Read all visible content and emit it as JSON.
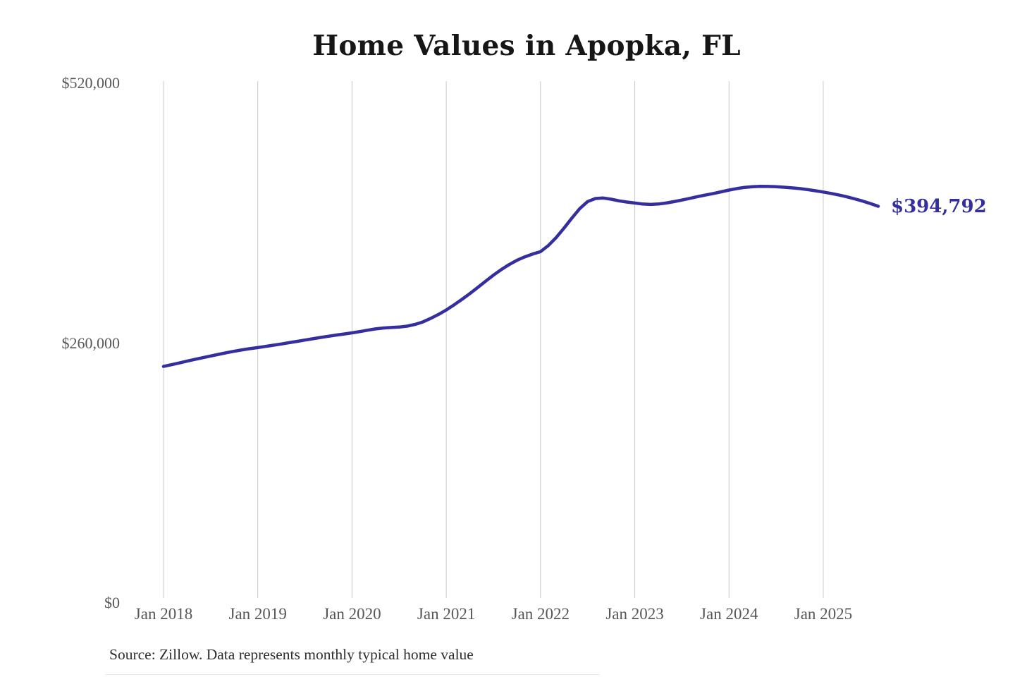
{
  "chart_data": {
    "type": "line",
    "title": "Home Values in Apopka, FL",
    "source": "Source: Zillow. Data represents monthly typical home value",
    "end_label": "$394,792",
    "latest_value": 394792,
    "line_color": "#352e9e",
    "grid": "vertical-only",
    "legend": "none",
    "ylim": [
      0,
      520000
    ],
    "y_ticks": [
      {
        "label": "$520,000",
        "value": 520000
      },
      {
        "label": "$260,000",
        "value": 260000
      },
      {
        "label": "$0",
        "value": 0
      }
    ],
    "x_tick_labels": [
      "Jan 2018",
      "Jan 2019",
      "Jan 2020",
      "Jan 2021",
      "Jan 2022",
      "Jan 2023",
      "Jan 2024",
      "Jan 2025"
    ],
    "series": [
      {
        "name": "Monthly typical home value",
        "start": "Jan 2018",
        "end": "Aug 2025",
        "frequency": "monthly",
        "values": [
          234500,
          236200,
          238000,
          239800,
          241600,
          243300,
          245000,
          246600,
          248200,
          249700,
          251100,
          252300,
          253400,
          254600,
          255800,
          257000,
          258300,
          259600,
          260900,
          262200,
          263500,
          264700,
          265900,
          267000,
          268100,
          269400,
          270800,
          272100,
          273000,
          273500,
          273900,
          274800,
          276500,
          279000,
          282500,
          286500,
          291000,
          296200,
          301600,
          307400,
          313500,
          319700,
          325800,
          331400,
          336400,
          340700,
          344200,
          347000,
          349300,
          355500,
          363500,
          373000,
          383000,
          392500,
          399500,
          402500,
          403000,
          401800,
          400200,
          399000,
          398000,
          397000,
          396600,
          397000,
          398000,
          399400,
          401000,
          402700,
          404400,
          406000,
          407500,
          409200,
          411000,
          412500,
          413700,
          414400,
          414700,
          414600,
          414300,
          413800,
          413200,
          412500,
          411500,
          410300,
          409000,
          407600,
          406000,
          404200,
          402200,
          400000,
          397500,
          394792
        ]
      }
    ]
  }
}
